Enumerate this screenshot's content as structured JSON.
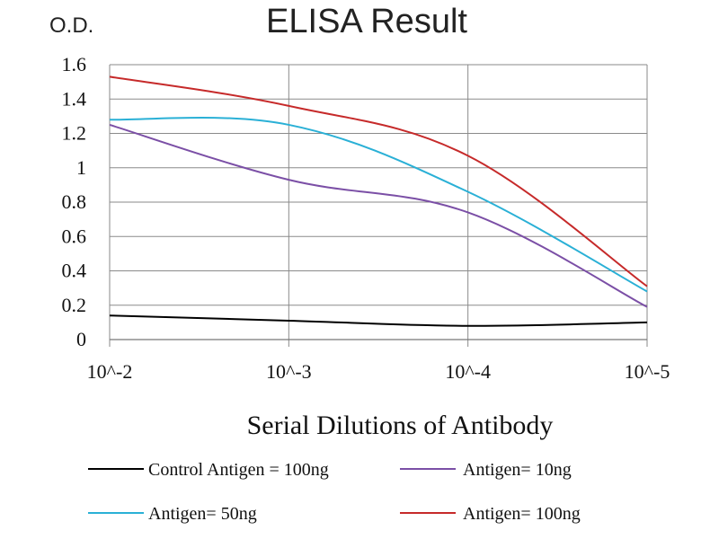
{
  "chart_data": {
    "type": "line",
    "title": "ELISA Result",
    "ylabel": "O.D.",
    "xlabel": "Serial Dilutions  of Antibody",
    "categories": [
      "10^-2",
      "10^-3",
      "10^-4",
      "10^-5"
    ],
    "y_ticks": [
      "0",
      "0.2",
      "0.4",
      "0.6",
      "0.8",
      "1",
      "1.2",
      "1.4",
      "1.6"
    ],
    "ylim": [
      0,
      1.6
    ],
    "grid": true,
    "legend_position": "bottom",
    "series": [
      {
        "name": "Control Antigen = 100ng",
        "color": "#000000",
        "values": [
          0.14,
          0.11,
          0.08,
          0.1
        ]
      },
      {
        "name": "Antigen= 10ng",
        "color": "#7b4fa6",
        "values": [
          1.25,
          0.93,
          0.74,
          0.19
        ]
      },
      {
        "name": "Antigen= 50ng",
        "color": "#2ab0d6",
        "values": [
          1.28,
          1.25,
          0.86,
          0.28
        ]
      },
      {
        "name": "Antigen= 100ng",
        "color": "#c62a2a",
        "values": [
          1.53,
          1.36,
          1.07,
          0.31
        ]
      }
    ]
  }
}
